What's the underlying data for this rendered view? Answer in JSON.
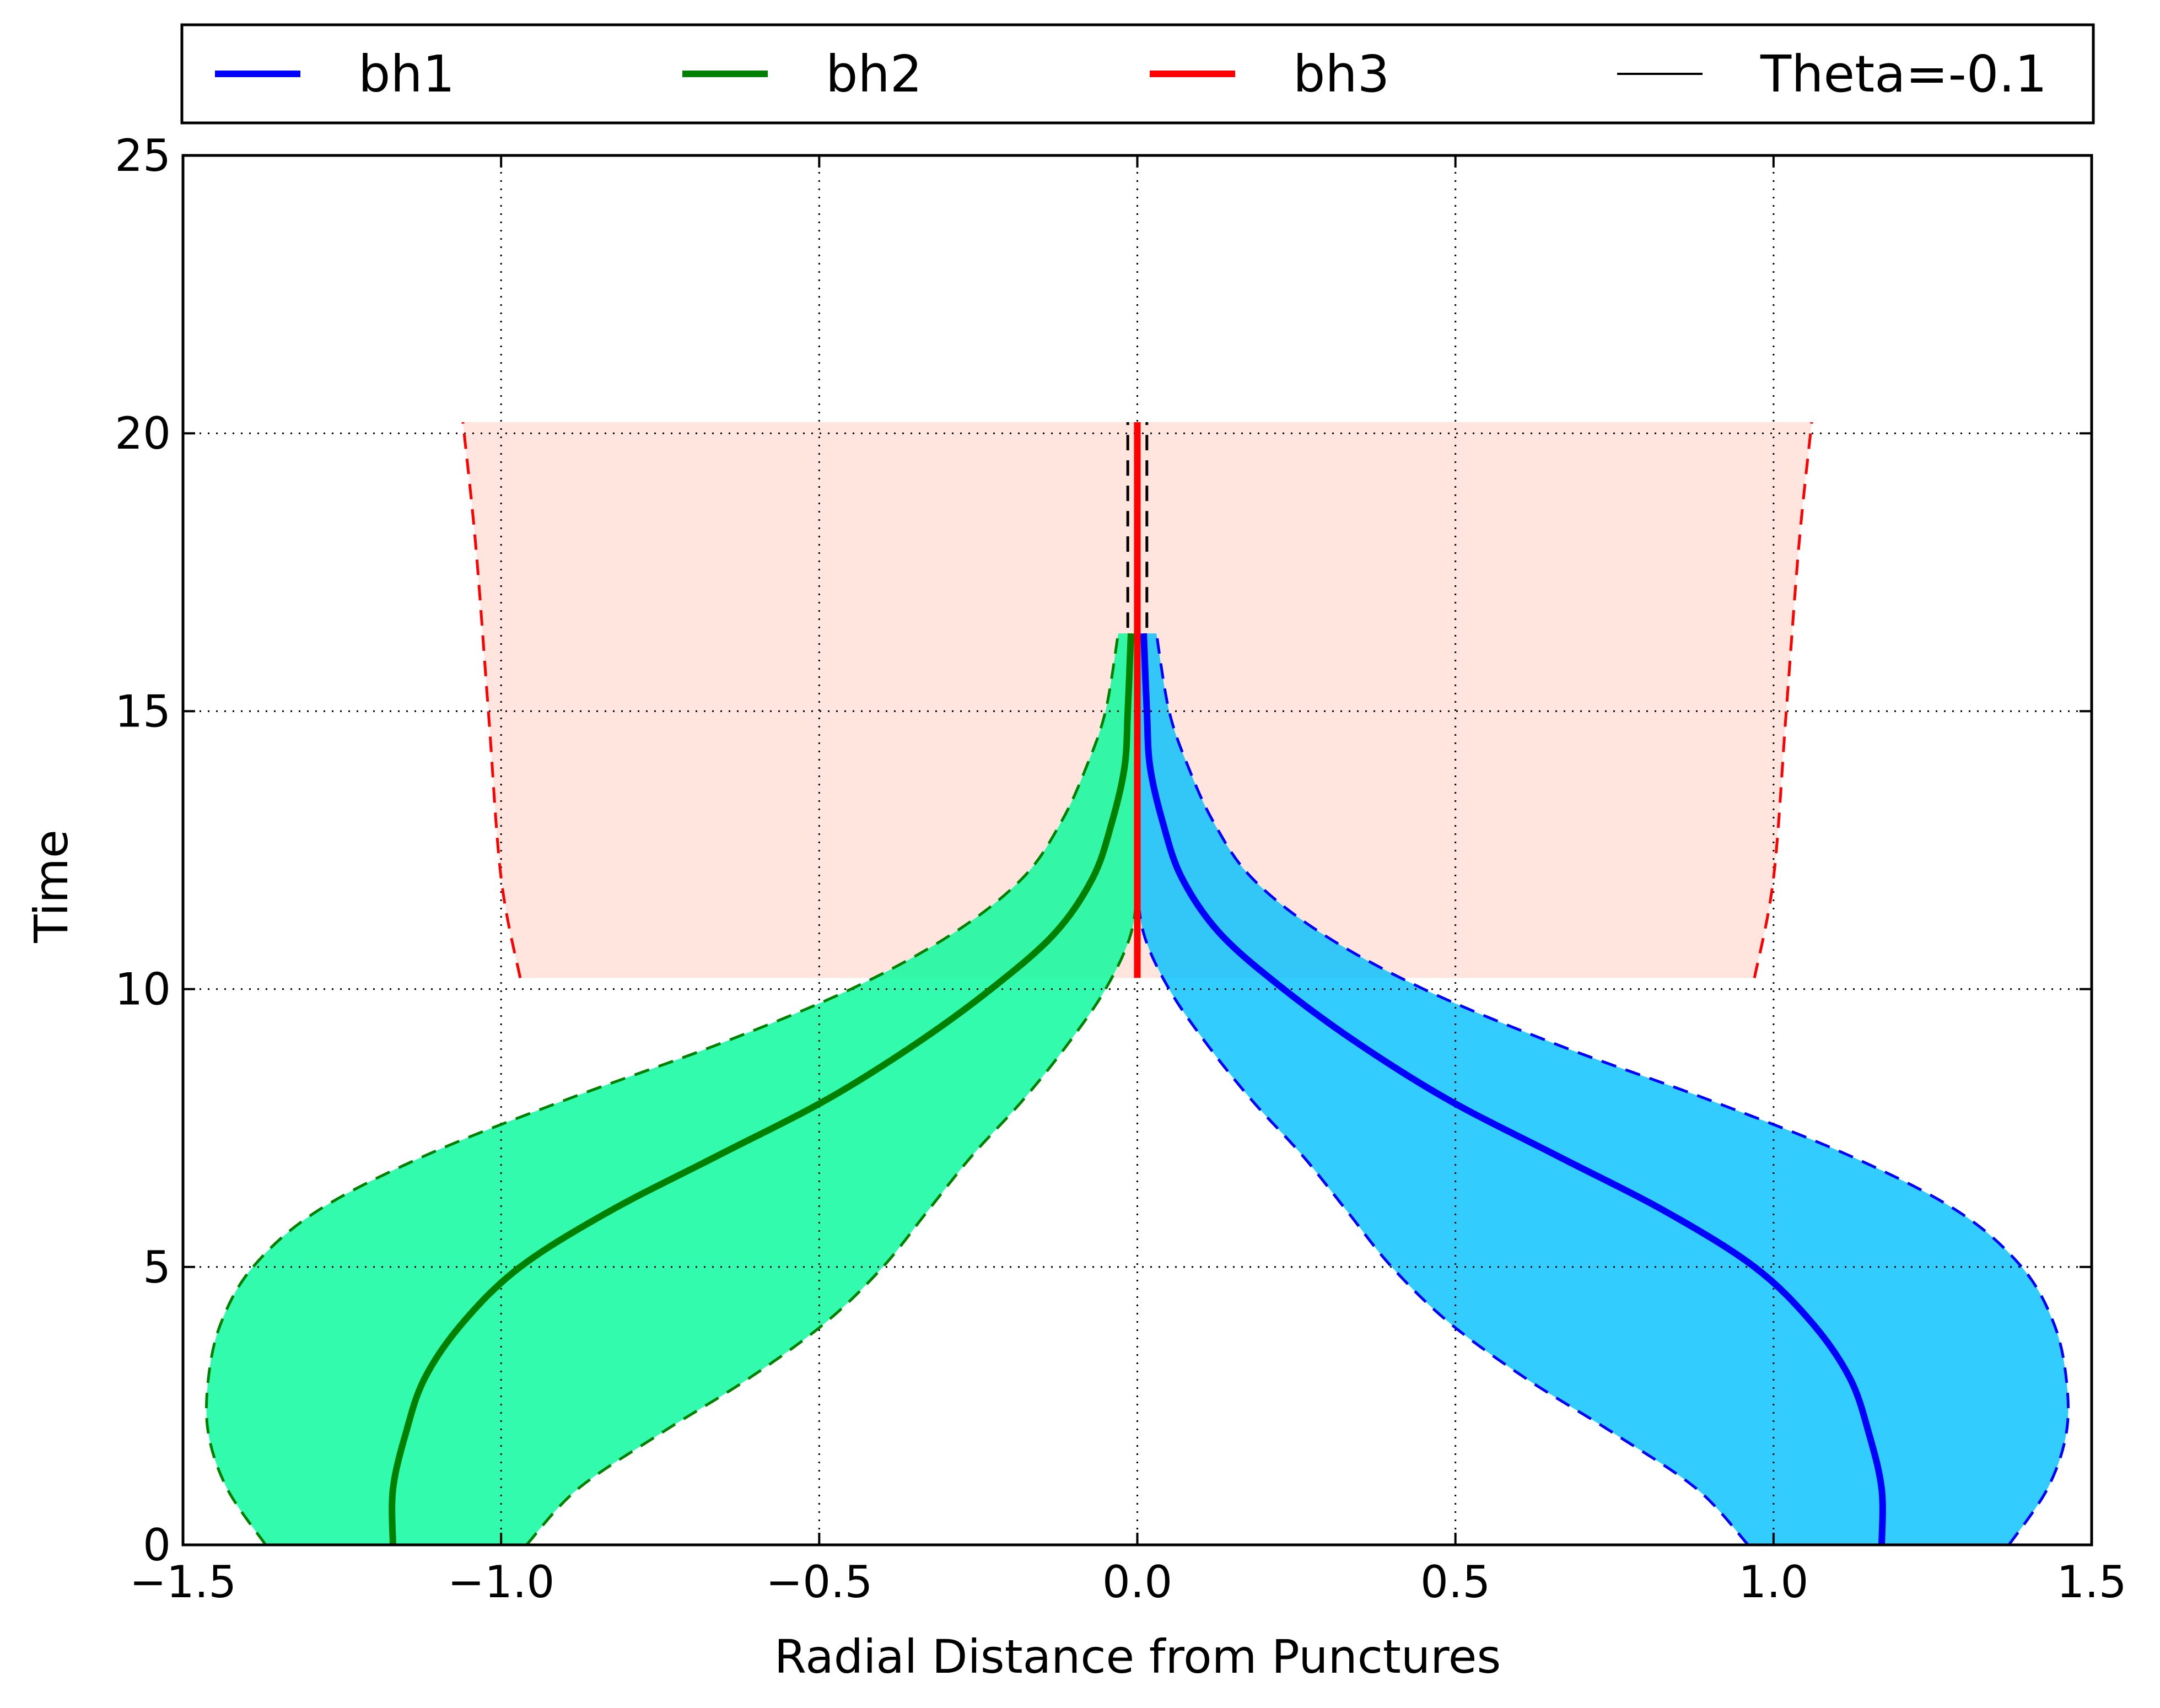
{
  "chart_data": {
    "type": "area",
    "xlabel": "Radial Distance from Punctures",
    "ylabel": "Time",
    "xlim": [
      -1.5,
      1.5
    ],
    "ylim": [
      0,
      25
    ],
    "xticks": [
      -1.5,
      -1.0,
      -0.5,
      0.0,
      0.5,
      1.0,
      1.5
    ],
    "xtick_labels": [
      "−1.5",
      "−1.0",
      "−0.5",
      "0.0",
      "0.5",
      "1.0",
      "1.5"
    ],
    "yticks": [
      0,
      5,
      10,
      15,
      20,
      25
    ],
    "ytick_labels": [
      "0",
      "5",
      "10",
      "15",
      "20",
      "25"
    ],
    "grid": true,
    "grid_style": "dotted",
    "legend_placement": "above plot, horizontal",
    "series": [
      {
        "name": "bh1",
        "color": "#0000ff",
        "fill": "#00bfff",
        "center": [
          [
            1.17,
            0
          ],
          [
            1.17,
            1
          ],
          [
            1.15,
            2
          ],
          [
            1.12,
            3
          ],
          [
            1.06,
            4
          ],
          [
            0.97,
            5
          ],
          [
            0.83,
            6
          ],
          [
            0.66,
            7
          ],
          [
            0.49,
            8
          ],
          [
            0.35,
            9
          ],
          [
            0.23,
            10
          ],
          [
            0.13,
            11
          ],
          [
            0.07,
            12
          ],
          [
            0.04,
            13
          ],
          [
            0.02,
            14
          ],
          [
            0.015,
            15
          ],
          [
            0.01,
            16.4
          ]
        ],
        "inner": [
          [
            0.96,
            0
          ],
          [
            0.88,
            1
          ],
          [
            0.75,
            2
          ],
          [
            0.61,
            3
          ],
          [
            0.49,
            4
          ],
          [
            0.4,
            5
          ],
          [
            0.33,
            6
          ],
          [
            0.26,
            7
          ],
          [
            0.18,
            8
          ],
          [
            0.11,
            9
          ],
          [
            0.05,
            10
          ],
          [
            0.01,
            11
          ],
          [
            0.0,
            12
          ],
          [
            0.0,
            13
          ],
          [
            0.0,
            14
          ],
          [
            0.0,
            15
          ],
          [
            0.0,
            16.4
          ]
        ],
        "outer": [
          [
            1.37,
            0
          ],
          [
            1.43,
            1
          ],
          [
            1.46,
            2
          ],
          [
            1.46,
            3
          ],
          [
            1.44,
            4
          ],
          [
            1.39,
            5
          ],
          [
            1.29,
            6
          ],
          [
            1.12,
            7
          ],
          [
            0.9,
            8
          ],
          [
            0.66,
            9
          ],
          [
            0.45,
            10
          ],
          [
            0.29,
            11
          ],
          [
            0.18,
            12
          ],
          [
            0.12,
            13
          ],
          [
            0.08,
            14
          ],
          [
            0.05,
            15
          ],
          [
            0.03,
            16.4
          ]
        ]
      },
      {
        "name": "bh2",
        "color": "#008000",
        "fill": "#00fa9a",
        "center": [
          [
            -1.17,
            0
          ],
          [
            -1.17,
            1
          ],
          [
            -1.15,
            2
          ],
          [
            -1.12,
            3
          ],
          [
            -1.06,
            4
          ],
          [
            -0.97,
            5
          ],
          [
            -0.83,
            6
          ],
          [
            -0.66,
            7
          ],
          [
            -0.49,
            8
          ],
          [
            -0.35,
            9
          ],
          [
            -0.23,
            10
          ],
          [
            -0.13,
            11
          ],
          [
            -0.07,
            12
          ],
          [
            -0.04,
            13
          ],
          [
            -0.02,
            14
          ],
          [
            -0.015,
            15
          ],
          [
            -0.01,
            16.4
          ]
        ],
        "inner": [
          [
            -0.96,
            0
          ],
          [
            -0.88,
            1
          ],
          [
            -0.75,
            2
          ],
          [
            -0.61,
            3
          ],
          [
            -0.49,
            4
          ],
          [
            -0.4,
            5
          ],
          [
            -0.33,
            6
          ],
          [
            -0.26,
            7
          ],
          [
            -0.18,
            8
          ],
          [
            -0.11,
            9
          ],
          [
            -0.05,
            10
          ],
          [
            -0.01,
            11
          ],
          [
            0.0,
            12
          ],
          [
            0.0,
            13
          ],
          [
            0.0,
            14
          ],
          [
            0.0,
            15
          ],
          [
            0.0,
            16.4
          ]
        ],
        "outer": [
          [
            -1.37,
            0
          ],
          [
            -1.43,
            1
          ],
          [
            -1.46,
            2
          ],
          [
            -1.46,
            3
          ],
          [
            -1.44,
            4
          ],
          [
            -1.39,
            5
          ],
          [
            -1.29,
            6
          ],
          [
            -1.12,
            7
          ],
          [
            -0.9,
            8
          ],
          [
            -0.66,
            9
          ],
          [
            -0.45,
            10
          ],
          [
            -0.29,
            11
          ],
          [
            -0.18,
            12
          ],
          [
            -0.12,
            13
          ],
          [
            -0.08,
            14
          ],
          [
            -0.05,
            15
          ],
          [
            -0.03,
            16.4
          ]
        ]
      },
      {
        "name": "bh3",
        "color": "#ff0000",
        "fill": "#ffe4db",
        "center": [
          [
            0.0,
            10.2
          ],
          [
            0.0,
            20.2
          ]
        ],
        "inner": [
          [
            0.97,
            10.2
          ],
          [
            1.0,
            12
          ],
          [
            1.02,
            15
          ],
          [
            1.04,
            18
          ],
          [
            1.06,
            20.2
          ]
        ],
        "outer": [
          [
            -0.97,
            10.2
          ],
          [
            -1.0,
            12
          ],
          [
            -1.02,
            15
          ],
          [
            -1.04,
            18
          ],
          [
            -1.06,
            20.2
          ]
        ]
      }
    ],
    "theta_line": {
      "name": "Theta=-0.1",
      "color": "#000000",
      "segments": [
        [
          [
            -0.015,
            16.5
          ],
          [
            -0.015,
            20.2
          ]
        ],
        [
          [
            0.015,
            16.5
          ],
          [
            0.015,
            20.2
          ]
        ],
        [
          [
            0.0,
            12.0
          ],
          [
            0.0,
            20.2
          ]
        ]
      ]
    },
    "legend": [
      {
        "label": "bh1",
        "color": "#0000ff",
        "style": "thick"
      },
      {
        "label": "bh2",
        "color": "#008000",
        "style": "thick"
      },
      {
        "label": "bh3",
        "color": "#ff0000",
        "style": "thick"
      },
      {
        "label": "Theta=-0.1",
        "color": "#000000",
        "style": "thin"
      }
    ]
  }
}
